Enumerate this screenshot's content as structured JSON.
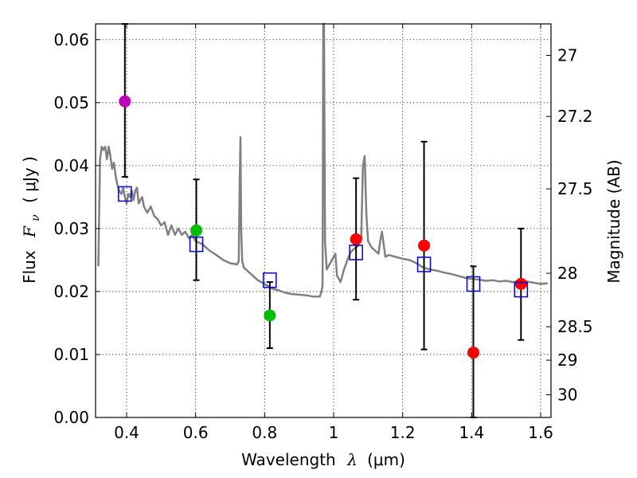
{
  "chart_data": {
    "type": "scatter",
    "title": "",
    "xlabel": "Wavelength",
    "xlabel_symbol": "λ",
    "xlabel_unit": "(μm)",
    "ylabel_prefix": "Flux",
    "ylabel_symbol": "F",
    "ylabel_subscript": "ν",
    "ylabel_unit": "( μJy )",
    "y2label": "Magnitude (AB)",
    "xlim": [
      0.31,
      1.63
    ],
    "ylim": [
      0.0,
      0.0625
    ],
    "grid": true,
    "x_ticks": [
      0.4,
      0.6,
      0.8,
      1.0,
      1.2,
      1.4,
      1.6
    ],
    "x_tick_labels": [
      "0.4",
      "0.6",
      "0.8",
      "1",
      "1.2",
      "1.4",
      "1.6"
    ],
    "y_ticks": [
      0.0,
      0.01,
      0.02,
      0.03,
      0.04,
      0.05,
      0.06
    ],
    "y_tick_labels": [
      "0.00",
      "0.01",
      "0.02",
      "0.03",
      "0.04",
      "0.05",
      "0.06"
    ],
    "y2_ticks": [
      {
        "label": "27",
        "flux": 0.0575
      },
      {
        "label": "27.2",
        "flux": 0.0478
      },
      {
        "label": "27.5",
        "flux": 0.0363
      },
      {
        "label": "28",
        "flux": 0.0229
      },
      {
        "label": "28.5",
        "flux": 0.0144
      },
      {
        "label": "29",
        "flux": 0.0091
      },
      {
        "label": "30",
        "flux": 0.0036
      }
    ],
    "model_spectrum": {
      "name": "template SED",
      "color": "#808080",
      "x": [
        0.318,
        0.323,
        0.328,
        0.333,
        0.338,
        0.343,
        0.348,
        0.353,
        0.358,
        0.363,
        0.368,
        0.373,
        0.378,
        0.385,
        0.39,
        0.395,
        0.4,
        0.405,
        0.41,
        0.415,
        0.42,
        0.425,
        0.43,
        0.435,
        0.44,
        0.445,
        0.45,
        0.46,
        0.47,
        0.48,
        0.49,
        0.5,
        0.51,
        0.52,
        0.53,
        0.54,
        0.55,
        0.56,
        0.57,
        0.58,
        0.59,
        0.6,
        0.62,
        0.64,
        0.66,
        0.68,
        0.7,
        0.72,
        0.725,
        0.728,
        0.73,
        0.732,
        0.735,
        0.74,
        0.76,
        0.78,
        0.8,
        0.82,
        0.84,
        0.86,
        0.88,
        0.9,
        0.92,
        0.94,
        0.96,
        0.965,
        0.968,
        0.97,
        0.972,
        0.975,
        0.98,
        0.99,
        1.0,
        1.005,
        1.01,
        1.02,
        1.03,
        1.04,
        1.05,
        1.06,
        1.07,
        1.08,
        1.085,
        1.09,
        1.095,
        1.1,
        1.11,
        1.12,
        1.13,
        1.135,
        1.14,
        1.15,
        1.16,
        1.18,
        1.2,
        1.22,
        1.24,
        1.26,
        1.28,
        1.3,
        1.32,
        1.34,
        1.36,
        1.38,
        1.4,
        1.42,
        1.44,
        1.46,
        1.48,
        1.5,
        1.52,
        1.54,
        1.56,
        1.58,
        1.6,
        1.62
      ],
      "y": [
        0.024,
        0.041,
        0.043,
        0.0425,
        0.043,
        0.041,
        0.043,
        0.0415,
        0.0395,
        0.0405,
        0.0385,
        0.037,
        0.036,
        0.0355,
        0.0365,
        0.035,
        0.034,
        0.0355,
        0.035,
        0.036,
        0.0345,
        0.036,
        0.0365,
        0.034,
        0.0345,
        0.035,
        0.0335,
        0.0325,
        0.0335,
        0.032,
        0.0315,
        0.0305,
        0.031,
        0.029,
        0.0305,
        0.029,
        0.03,
        0.029,
        0.0295,
        0.0285,
        0.029,
        0.028,
        0.0275,
        0.0265,
        0.0258,
        0.025,
        0.0245,
        0.0243,
        0.0248,
        0.038,
        0.0445,
        0.03,
        0.0248,
        0.0238,
        0.0228,
        0.0218,
        0.0212,
        0.0205,
        0.0202,
        0.0198,
        0.0196,
        0.0195,
        0.0194,
        0.0192,
        0.0192,
        0.02,
        0.021,
        0.0625,
        0.0625,
        0.028,
        0.0235,
        0.0245,
        0.0255,
        0.026,
        0.0225,
        0.0215,
        0.0235,
        0.025,
        0.0263,
        0.0268,
        0.0272,
        0.0285,
        0.04,
        0.0415,
        0.032,
        0.028,
        0.027,
        0.0265,
        0.026,
        0.028,
        0.0295,
        0.0255,
        0.0258,
        0.0255,
        0.0252,
        0.025,
        0.0245,
        0.0238,
        0.0235,
        0.0233,
        0.023,
        0.0228,
        0.0225,
        0.0222,
        0.022,
        0.0219,
        0.0217,
        0.0218,
        0.0216,
        0.0217,
        0.0215,
        0.0217,
        0.0216,
        0.0214,
        0.0212,
        0.0213
      ]
    },
    "model_photometry": {
      "name": "model band flux",
      "marker": "square-open",
      "color": "#0000cc",
      "points": [
        {
          "x": 0.395,
          "y": 0.0355
        },
        {
          "x": 0.602,
          "y": 0.0275
        },
        {
          "x": 0.815,
          "y": 0.0218
        },
        {
          "x": 1.065,
          "y": 0.0262
        },
        {
          "x": 1.262,
          "y": 0.0243
        },
        {
          "x": 1.405,
          "y": 0.0212
        },
        {
          "x": 1.543,
          "y": 0.0203
        }
      ]
    },
    "observed_photometry": [
      {
        "x": 0.395,
        "y": 0.0502,
        "yerr_low": 0.0382,
        "yerr_high": 0.0625,
        "color": "#bf00bf"
      },
      {
        "x": 0.602,
        "y": 0.0297,
        "yerr_low": 0.0218,
        "yerr_high": 0.0378,
        "color": "#00bf00"
      },
      {
        "x": 0.815,
        "y": 0.0162,
        "yerr_low": 0.011,
        "yerr_high": 0.0215,
        "color": "#00bf00"
      },
      {
        "x": 1.065,
        "y": 0.0283,
        "yerr_low": 0.0187,
        "yerr_high": 0.038,
        "color": "#ff0000"
      },
      {
        "x": 1.262,
        "y": 0.0273,
        "yerr_low": 0.0108,
        "yerr_high": 0.0438,
        "color": "#ff0000"
      },
      {
        "x": 1.405,
        "y": 0.0103,
        "yerr_low": 0.0,
        "yerr_high": 0.024,
        "color": "#ff0000"
      },
      {
        "x": 1.543,
        "y": 0.0212,
        "yerr_low": 0.0123,
        "yerr_high": 0.03,
        "color": "#ff0000"
      }
    ]
  }
}
